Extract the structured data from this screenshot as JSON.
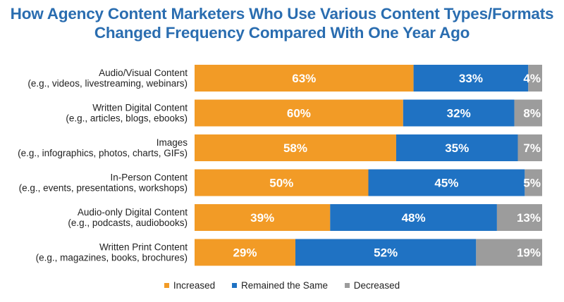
{
  "chart_data": {
    "type": "bar",
    "orientation": "horizontal",
    "stacked": true,
    "title_lines": [
      "How Agency Content Marketers Who Use Various Content Types/Formats",
      "Changed Frequency Compared With One Year Ago"
    ],
    "categories": [
      {
        "name": "Audio/Visual Content",
        "examples": "(e.g., videos, livestreaming, webinars)"
      },
      {
        "name": "Written Digital Content",
        "examples": "(e.g., articles, blogs, ebooks)"
      },
      {
        "name": "Images",
        "examples": "(e.g., infographics, photos, charts, GIFs)"
      },
      {
        "name": "In-Person Content",
        "examples": "(e.g., events, presentations, workshops)"
      },
      {
        "name": "Audio-only Digital Content",
        "examples": "(e.g., podcasts, audiobooks)"
      },
      {
        "name": "Written Print Content",
        "examples": "(e.g., magazines, books, brochures)"
      }
    ],
    "series": [
      {
        "name": "Increased",
        "color": "#f29b26",
        "values": [
          63,
          60,
          58,
          50,
          39,
          29
        ]
      },
      {
        "name": "Remained the Same",
        "color": "#1f72c3",
        "values": [
          33,
          32,
          35,
          45,
          48,
          52
        ]
      },
      {
        "name": "Decreased",
        "color": "#9c9c9c",
        "values": [
          4,
          8,
          7,
          5,
          13,
          19
        ]
      }
    ],
    "value_suffix": "%",
    "xlim": [
      0,
      100
    ],
    "legend_position": "bottom"
  }
}
